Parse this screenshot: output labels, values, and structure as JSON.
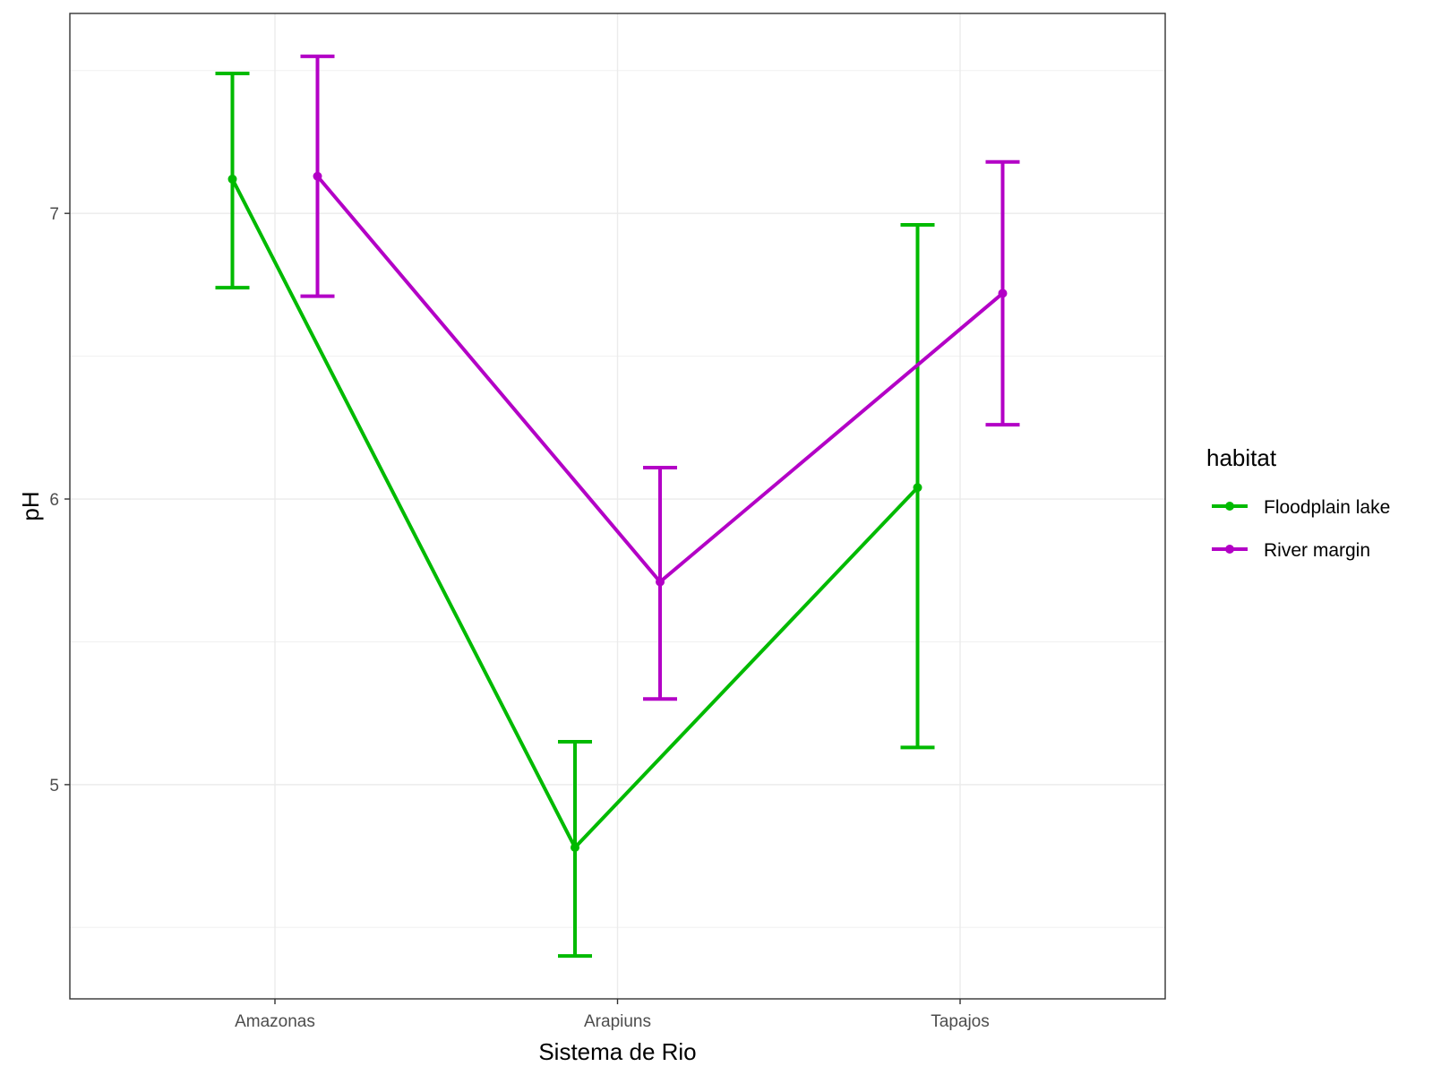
{
  "chart_data": {
    "type": "line",
    "xlabel": "Sistema de Rio",
    "ylabel": "pH",
    "categories": [
      "Amazonas",
      "Arapiuns",
      "Tapajos"
    ],
    "ylim": [
      4.25,
      7.7
    ],
    "yticks": [
      5,
      6,
      7
    ],
    "grid": true,
    "legend": {
      "title": "habitat",
      "position": "right"
    },
    "series": [
      {
        "name": "Floodplain lake",
        "color": "#00ba00",
        "values": [
          7.12,
          4.78,
          6.04
        ],
        "lower": [
          6.74,
          4.4,
          5.13
        ],
        "upper": [
          7.49,
          5.15,
          6.96
        ]
      },
      {
        "name": "River margin",
        "color": "#b300c6",
        "values": [
          7.13,
          5.71,
          6.72
        ],
        "lower": [
          6.71,
          5.3,
          6.26
        ],
        "upper": [
          7.55,
          6.11,
          7.18
        ]
      }
    ]
  }
}
